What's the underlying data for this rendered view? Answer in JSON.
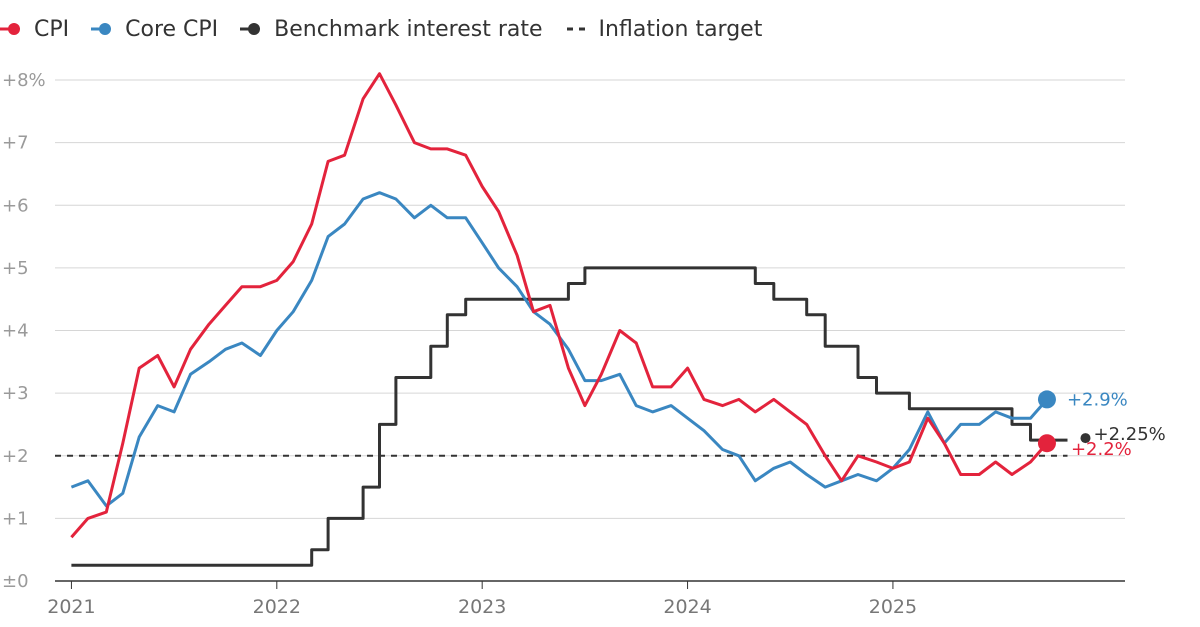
{
  "chart_data": {
    "type": "line",
    "xlabel": "",
    "ylabel": "",
    "y_tick_labels": [
      "±0",
      "+1",
      "+2",
      "+3",
      "+4",
      "+5",
      "+6",
      "+7",
      "+8%"
    ],
    "y_ticks": [
      0,
      1,
      2,
      3,
      4,
      5,
      6,
      7,
      8
    ],
    "ylim": [
      0,
      8
    ],
    "x_tick_labels": [
      "2021",
      "2022",
      "2023",
      "2024",
      "2025"
    ],
    "x_ticks": [
      2021,
      2022,
      2023,
      2024,
      2025
    ],
    "xlim": [
      2020.92,
      2026.13
    ],
    "grid": true,
    "legend_position": "top-left",
    "series": [
      {
        "name": "CPI",
        "color": "#e3233c",
        "style": "solid",
        "x": [
          2021.0,
          2021.08,
          2021.17,
          2021.25,
          2021.33,
          2021.42,
          2021.5,
          2021.58,
          2021.67,
          2021.75,
          2021.83,
          2021.92,
          2022.0,
          2022.08,
          2022.17,
          2022.25,
          2022.33,
          2022.42,
          2022.5,
          2022.58,
          2022.67,
          2022.75,
          2022.83,
          2022.92,
          2023.0,
          2023.08,
          2023.17,
          2023.25,
          2023.33,
          2023.42,
          2023.5,
          2023.58,
          2023.67,
          2023.75,
          2023.83,
          2023.92,
          2024.0,
          2024.08,
          2024.17,
          2024.25,
          2024.33,
          2024.42,
          2024.5,
          2024.58,
          2024.67,
          2024.75,
          2024.83,
          2024.92,
          2025.0,
          2025.08,
          2025.17,
          2025.25,
          2025.33,
          2025.42,
          2025.5,
          2025.58,
          2025.67,
          2025.75
        ],
        "values": [
          0.7,
          1.0,
          1.1,
          2.2,
          3.4,
          3.6,
          3.1,
          3.7,
          4.1,
          4.4,
          4.7,
          4.7,
          4.8,
          5.1,
          5.7,
          6.7,
          6.8,
          7.7,
          8.1,
          7.6,
          7.0,
          6.9,
          6.9,
          6.8,
          6.3,
          5.9,
          5.2,
          4.3,
          4.4,
          3.4,
          2.8,
          3.3,
          4.0,
          3.8,
          3.1,
          3.1,
          3.4,
          2.9,
          2.8,
          2.9,
          2.7,
          2.9,
          2.7,
          2.5,
          2.0,
          1.6,
          2.0,
          1.9,
          1.8,
          1.9,
          2.6,
          2.2,
          1.7,
          1.7,
          1.9,
          1.7,
          1.9,
          2.2
        ],
        "end_label": "+2.2%"
      },
      {
        "name": "Core CPI",
        "color": "#3a87c1",
        "style": "solid",
        "x": [
          2021.0,
          2021.08,
          2021.17,
          2021.25,
          2021.33,
          2021.42,
          2021.5,
          2021.58,
          2021.67,
          2021.75,
          2021.83,
          2021.92,
          2022.0,
          2022.08,
          2022.17,
          2022.25,
          2022.33,
          2022.42,
          2022.5,
          2022.58,
          2022.67,
          2022.75,
          2022.83,
          2022.92,
          2023.0,
          2023.08,
          2023.17,
          2023.25,
          2023.33,
          2023.42,
          2023.5,
          2023.58,
          2023.67,
          2023.75,
          2023.83,
          2023.92,
          2024.0,
          2024.08,
          2024.17,
          2024.25,
          2024.33,
          2024.42,
          2024.5,
          2024.58,
          2024.67,
          2024.75,
          2024.83,
          2024.92,
          2025.0,
          2025.08,
          2025.17,
          2025.25,
          2025.33,
          2025.42,
          2025.5,
          2025.58,
          2025.67,
          2025.75
        ],
        "values": [
          1.5,
          1.6,
          1.2,
          1.4,
          2.3,
          2.8,
          2.7,
          3.3,
          3.5,
          3.7,
          3.8,
          3.6,
          4.0,
          4.3,
          4.8,
          5.5,
          5.7,
          6.1,
          6.2,
          6.1,
          5.8,
          6.0,
          5.8,
          5.8,
          5.4,
          5.0,
          4.7,
          4.3,
          4.1,
          3.7,
          3.2,
          3.2,
          3.3,
          2.8,
          2.7,
          2.8,
          2.6,
          2.4,
          2.1,
          2.0,
          1.6,
          1.8,
          1.9,
          1.7,
          1.5,
          1.6,
          1.7,
          1.6,
          1.8,
          2.1,
          2.7,
          2.2,
          2.5,
          2.5,
          2.7,
          2.6,
          2.6,
          2.9
        ],
        "end_label": "+2.9%"
      },
      {
        "name": "Benchmark interest rate",
        "color": "#333333",
        "style": "step",
        "x": [
          2021.0,
          2022.17,
          2022.25,
          2022.42,
          2022.5,
          2022.58,
          2022.75,
          2022.83,
          2022.92,
          2023.08,
          2023.42,
          2023.5,
          2024.33,
          2024.42,
          2024.58,
          2024.67,
          2024.83,
          2024.92,
          2025.08,
          2025.58,
          2025.67
        ],
        "values": [
          0.25,
          0.5,
          1.0,
          1.5,
          2.5,
          3.25,
          3.75,
          4.25,
          4.5,
          4.5,
          4.75,
          5.0,
          4.75,
          4.5,
          4.25,
          3.75,
          3.25,
          3.0,
          2.75,
          2.5,
          2.25
        ],
        "x_end": 2025.85,
        "end_label": "+2.25%"
      },
      {
        "name": "Inflation target",
        "color": "#333333",
        "style": "dashed",
        "x": [
          2020.92,
          2025.85
        ],
        "values": [
          2.0,
          2.0
        ]
      }
    ]
  }
}
